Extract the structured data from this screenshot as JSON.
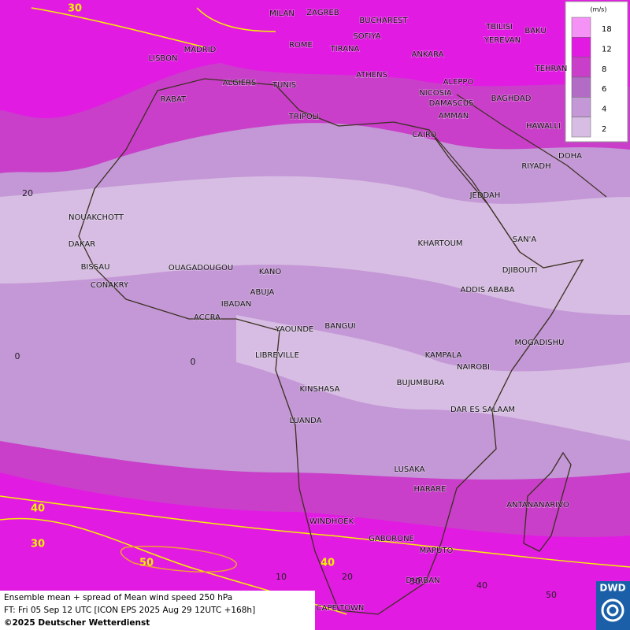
{
  "map": {
    "cities": [
      "MILAN",
      "ZAGREB",
      "BUCHAREST",
      "TBILISI",
      "BAKU",
      "MADRID",
      "ROME",
      "SOFIYA",
      "YEREVAN",
      "TIRANA",
      "ANKARA",
      "LISBON",
      "TEHRAN",
      "ALGIERS",
      "TUNIS",
      "ATHENS",
      "ALEPPO",
      "RABAT",
      "NICOSIA",
      "BAGHDAD",
      "DAMASCUS",
      "TRIPOLI",
      "AMMAN",
      "CAIRO",
      "HAWALLI",
      "DOHA",
      "RIYADH",
      "JEDDAH",
      "NOUAKCHOTT",
      "SAN'A",
      "KHARTOUM",
      "DAKAR",
      "BISSAU",
      "OUAGADOUGOU",
      "KANO",
      "DJIBOUTI",
      "CONAKRY",
      "ABUJA",
      "ADDIS ABABA",
      "IBADAN",
      "ACCRA",
      "YAOUNDE",
      "BANGUI",
      "MOGADISHU",
      "LIBREVILLE",
      "KAMPALA",
      "NAIROBI",
      "BUJUMBURA",
      "KINSHASA",
      "DAR ES SALAAM",
      "LUANDA",
      "LUSAKA",
      "HARARE",
      "ANTANANARIVO",
      "WINDHOEK",
      "GABORONE",
      "MAPUTO",
      "DURBAN",
      "CAPE TOWN"
    ],
    "contour_labels": [
      30,
      40,
      30,
      50,
      40
    ],
    "latitude_labels": [
      20,
      0
    ],
    "longitude_labels": [
      0,
      10,
      20,
      30,
      40,
      50
    ]
  },
  "legend": {
    "unit": "(m/s)",
    "items": [
      {
        "label": 18,
        "color": "#f592f5"
      },
      {
        "label": 12,
        "color": "#e21be2"
      },
      {
        "label": 8,
        "color": "#c93fc9"
      },
      {
        "label": 6,
        "color": "#b26cc6"
      },
      {
        "label": 4,
        "color": "#c497d6"
      },
      {
        "label": 2,
        "color": "#d7bde3"
      }
    ]
  },
  "footer": {
    "line1": "Ensemble mean + spread of Mean wind speed 250 hPa",
    "line2": "FT: Fri 05 Sep 12 UTC [ICON EPS 2025 Aug 29 12UTC +168h]",
    "line3": "©2025 Deutscher Wetterdienst",
    "logo": "DWD"
  }
}
